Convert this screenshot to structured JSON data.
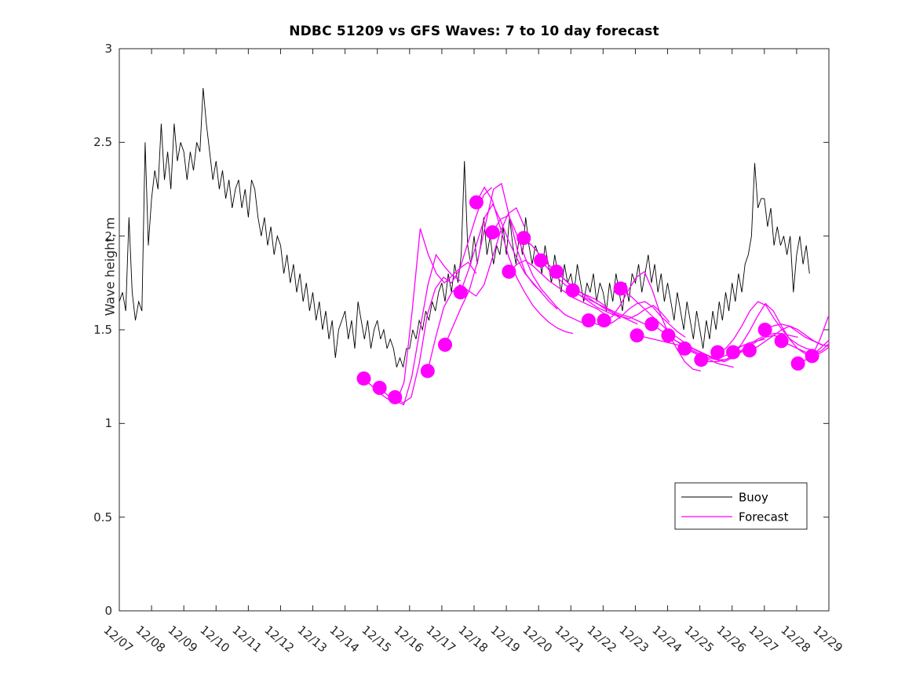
{
  "title": "NDBC 51209 vs GFS Waves: 7 to 10 day forecast",
  "ylabel": "Wave height, m",
  "legend": {
    "items": [
      {
        "label": "Buoy",
        "color": "#000000"
      },
      {
        "label": "Forecast",
        "color": "#ff00ff"
      }
    ]
  },
  "colors": {
    "buoy": "#000000",
    "forecast": "#ff00ff",
    "axis": "#262626",
    "background": "#ffffff"
  },
  "chart_data": {
    "type": "line",
    "title": "NDBC 51209 vs GFS Waves: 7 to 10 day forecast",
    "xlabel": "",
    "ylabel": "Wave height, m",
    "ylim": [
      0,
      3
    ],
    "yticks": [
      0,
      0.5,
      1,
      1.5,
      2,
      2.5,
      3
    ],
    "ytick_labels": [
      "0",
      "0.5",
      "1",
      "1.5",
      "2",
      "2.5",
      "3"
    ],
    "xtick_labels": [
      "12/07",
      "12/08",
      "12/09",
      "12/10",
      "12/11",
      "12/12",
      "12/13",
      "12/14",
      "12/15",
      "12/16",
      "12/17",
      "12/18",
      "12/19",
      "12/20",
      "12/21",
      "12/22",
      "12/23",
      "12/24",
      "12/25",
      "12/26",
      "12/27",
      "12/28",
      "12/29"
    ],
    "x_axis_note": "x values are days after 12/07 00:00; axis spans 0 to 22 (12/07 to 12/29)",
    "grid": false,
    "legend_position": "inside lower right",
    "series": [
      {
        "name": "Buoy",
        "style": "noisy line, black, ~hourly observations",
        "t0": 0.0,
        "dt": 0.1,
        "values": [
          1.65,
          1.7,
          1.6,
          2.1,
          1.7,
          1.55,
          1.65,
          1.6,
          2.5,
          1.95,
          2.2,
          2.35,
          2.25,
          2.6,
          2.3,
          2.45,
          2.25,
          2.6,
          2.4,
          2.5,
          2.45,
          2.3,
          2.45,
          2.35,
          2.5,
          2.45,
          2.79,
          2.6,
          2.45,
          2.3,
          2.4,
          2.25,
          2.35,
          2.2,
          2.3,
          2.15,
          2.25,
          2.3,
          2.15,
          2.25,
          2.1,
          2.3,
          2.25,
          2.1,
          2.0,
          2.1,
          1.95,
          2.05,
          1.9,
          2.0,
          1.95,
          1.8,
          1.9,
          1.75,
          1.85,
          1.7,
          1.8,
          1.65,
          1.75,
          1.6,
          1.7,
          1.55,
          1.65,
          1.5,
          1.6,
          1.45,
          1.55,
          1.35,
          1.5,
          1.55,
          1.6,
          1.45,
          1.55,
          1.4,
          1.65,
          1.55,
          1.45,
          1.55,
          1.4,
          1.5,
          1.55,
          1.45,
          1.5,
          1.4,
          1.45,
          1.4,
          1.3,
          1.35,
          1.3,
          1.4,
          1.4,
          1.5,
          1.45,
          1.55,
          1.5,
          1.6,
          1.55,
          1.65,
          1.6,
          1.7,
          1.75,
          1.65,
          1.8,
          1.7,
          1.85,
          1.75,
          1.9,
          2.4,
          1.95,
          1.85,
          2.0,
          1.85,
          1.95,
          2.1,
          1.9,
          2.0,
          1.85,
          1.95,
          1.9,
          2.05,
          1.9,
          2.1,
          1.95,
          1.85,
          2.0,
          1.9,
          2.1,
          1.95,
          1.85,
          1.95,
          1.9,
          1.8,
          1.95,
          1.85,
          1.75,
          1.9,
          1.8,
          1.7,
          1.85,
          1.75,
          1.8,
          1.7,
          1.85,
          1.75,
          1.65,
          1.75,
          1.7,
          1.8,
          1.65,
          1.75,
          1.7,
          1.6,
          1.75,
          1.65,
          1.8,
          1.7,
          1.6,
          1.75,
          1.65,
          1.8,
          1.75,
          1.85,
          1.7,
          1.8,
          1.9,
          1.75,
          1.85,
          1.7,
          1.8,
          1.65,
          1.75,
          1.65,
          1.55,
          1.7,
          1.6,
          1.5,
          1.65,
          1.55,
          1.45,
          1.6,
          1.5,
          1.4,
          1.55,
          1.45,
          1.6,
          1.5,
          1.65,
          1.55,
          1.7,
          1.6,
          1.75,
          1.65,
          1.8,
          1.7,
          1.85,
          1.9,
          2.0,
          2.39,
          2.15,
          2.2,
          2.2,
          2.05,
          2.15,
          1.95,
          2.05,
          1.95,
          2.0,
          1.9,
          2.0,
          1.7,
          1.9,
          2.0,
          1.85,
          1.95,
          1.8
        ]
      }
    ],
    "forecast_runs_note": "GFS wave forecasts, hours 168-240 (day 7 to day 10) of successive 12-hourly runs; magenta dot marks first (day-7) point of each run; dt between points = 0.25 day",
    "forecast_runs": [
      {
        "start_day": 7.58,
        "dt": 0.25,
        "values": [
          1.24,
          1.2,
          1.16,
          1.13,
          1.11,
          1.22,
          1.6,
          2.04,
          1.9,
          1.8,
          1.75,
          1.79,
          1.76
        ]
      },
      {
        "start_day": 8.07,
        "dt": 0.25,
        "values": [
          1.19,
          1.15,
          1.12,
          1.1,
          1.25,
          1.5,
          1.74,
          1.9,
          1.84,
          1.79,
          1.83,
          1.86,
          1.8
        ]
      },
      {
        "start_day": 8.55,
        "dt": 0.25,
        "values": [
          1.14,
          1.11,
          1.14,
          1.32,
          1.58,
          1.72,
          1.78,
          1.75,
          1.82,
          1.96,
          2.1,
          2.22,
          2.26
        ]
      },
      {
        "start_day": 9.56,
        "dt": 0.25,
        "values": [
          1.28,
          1.46,
          1.62,
          1.7,
          1.74,
          1.71,
          1.68,
          1.74,
          1.88,
          2.02,
          2.12,
          2.15,
          2.05
        ]
      },
      {
        "start_day": 10.1,
        "dt": 0.25,
        "values": [
          1.42,
          1.52,
          1.62,
          1.71,
          1.86,
          2.06,
          2.25,
          2.28,
          2.1,
          1.92,
          1.8,
          1.74,
          1.7
        ]
      },
      {
        "start_day": 10.58,
        "dt": 0.25,
        "values": [
          1.7,
          1.82,
          1.96,
          2.1,
          2.17,
          2.08,
          1.97,
          1.88,
          1.8,
          1.75,
          1.7,
          1.65,
          1.61
        ]
      },
      {
        "start_day": 11.07,
        "dt": 0.25,
        "values": [
          2.18,
          2.26,
          2.19,
          2.04,
          1.89,
          1.78,
          1.7,
          1.63,
          1.58,
          1.54,
          1.51,
          1.49,
          1.48
        ]
      },
      {
        "start_day": 11.57,
        "dt": 0.25,
        "values": [
          2.02,
          2.09,
          2.11,
          2.01,
          1.89,
          1.79,
          1.72,
          1.67,
          1.62,
          1.58,
          1.56,
          1.54,
          1.55
        ]
      },
      {
        "start_day": 12.08,
        "dt": 0.25,
        "values": [
          1.81,
          1.85,
          1.87,
          1.84,
          1.8,
          1.76,
          1.73,
          1.7,
          1.67,
          1.65,
          1.63,
          1.61,
          1.58
        ]
      },
      {
        "start_day": 12.54,
        "dt": 0.25,
        "values": [
          1.99,
          1.95,
          1.9,
          1.85,
          1.81,
          1.77,
          1.73,
          1.7,
          1.68,
          1.66,
          1.63,
          1.59,
          1.56
        ]
      },
      {
        "start_day": 13.07,
        "dt": 0.25,
        "values": [
          1.87,
          1.82,
          1.78,
          1.74,
          1.71,
          1.68,
          1.66,
          1.64,
          1.61,
          1.59,
          1.57,
          1.55,
          1.53
        ]
      },
      {
        "start_day": 13.55,
        "dt": 0.25,
        "values": [
          1.81,
          1.77,
          1.73,
          1.7,
          1.67,
          1.64,
          1.62,
          1.6,
          1.58,
          1.57,
          1.55,
          1.53,
          1.51
        ]
      },
      {
        "start_day": 14.06,
        "dt": 0.25,
        "values": [
          1.71,
          1.68,
          1.65,
          1.62,
          1.6,
          1.58,
          1.57,
          1.56,
          1.58,
          1.61,
          1.63,
          1.59,
          1.54
        ]
      },
      {
        "start_day": 14.55,
        "dt": 0.25,
        "values": [
          1.55,
          1.53,
          1.52,
          1.54,
          1.57,
          1.61,
          1.64,
          1.65,
          1.62,
          1.57,
          1.53,
          1.49,
          1.46
        ]
      },
      {
        "start_day": 15.03,
        "dt": 0.25,
        "values": [
          1.55,
          1.57,
          1.63,
          1.71,
          1.78,
          1.81,
          1.71,
          1.58,
          1.48,
          1.4,
          1.33,
          1.29,
          1.28
        ]
      },
      {
        "start_day": 15.54,
        "dt": 0.25,
        "values": [
          1.72,
          1.69,
          1.65,
          1.61,
          1.57,
          1.53,
          1.49,
          1.46,
          1.43,
          1.4,
          1.38,
          1.36,
          1.35
        ]
      },
      {
        "start_day": 16.05,
        "dt": 0.25,
        "values": [
          1.47,
          1.46,
          1.45,
          1.44,
          1.43,
          1.42,
          1.4,
          1.38,
          1.36,
          1.34,
          1.32,
          1.31,
          1.3
        ]
      },
      {
        "start_day": 16.51,
        "dt": 0.25,
        "values": [
          1.53,
          1.5,
          1.47,
          1.44,
          1.42,
          1.4,
          1.38,
          1.36,
          1.34,
          1.33,
          1.35,
          1.38,
          1.4
        ]
      },
      {
        "start_day": 17.02,
        "dt": 0.25,
        "values": [
          1.47,
          1.44,
          1.41,
          1.39,
          1.37,
          1.36,
          1.35,
          1.36,
          1.38,
          1.41,
          1.43,
          1.44,
          1.45
        ]
      },
      {
        "start_day": 17.53,
        "dt": 0.25,
        "values": [
          1.4,
          1.38,
          1.36,
          1.35,
          1.34,
          1.34,
          1.36,
          1.38,
          1.41,
          1.44,
          1.46,
          1.47,
          1.46
        ]
      },
      {
        "start_day": 18.04,
        "dt": 0.25,
        "values": [
          1.34,
          1.33,
          1.33,
          1.34,
          1.36,
          1.39,
          1.42,
          1.45,
          1.47,
          1.48,
          1.48,
          1.47,
          1.46
        ]
      },
      {
        "start_day": 18.55,
        "dt": 0.25,
        "values": [
          1.38,
          1.4,
          1.45,
          1.52,
          1.6,
          1.65,
          1.63,
          1.56,
          1.5,
          1.45,
          1.42,
          1.4,
          1.39
        ]
      },
      {
        "start_day": 19.03,
        "dt": 0.25,
        "values": [
          1.38,
          1.42,
          1.49,
          1.57,
          1.64,
          1.6,
          1.52,
          1.45,
          1.4,
          1.37,
          1.36,
          1.38,
          1.41
        ]
      },
      {
        "start_day": 19.54,
        "dt": 0.25,
        "values": [
          1.39,
          1.41,
          1.44,
          1.47,
          1.5,
          1.52,
          1.5,
          1.47,
          1.44,
          1.42,
          1.41,
          1.43,
          1.45
        ]
      },
      {
        "start_day": 20.02,
        "dt": 0.25,
        "values": [
          1.5,
          1.52,
          1.53,
          1.52,
          1.49,
          1.46,
          1.44,
          1.42,
          1.41,
          1.42,
          1.45,
          1.5,
          1.55
        ]
      },
      {
        "start_day": 20.53,
        "dt": 0.25,
        "values": [
          1.44,
          1.42,
          1.4,
          1.38,
          1.37,
          1.39,
          1.43,
          1.48,
          1.52,
          1.55,
          1.57,
          1.58,
          1.58
        ]
      },
      {
        "start_day": 21.04,
        "dt": 0.25,
        "values": [
          1.32,
          1.34,
          1.37,
          1.41,
          1.45,
          1.48,
          1.51,
          1.53,
          1.55,
          1.56,
          1.57,
          1.57,
          1.57
        ]
      },
      {
        "start_day": 21.48,
        "dt": 0.25,
        "values": [
          1.36,
          1.45,
          1.57,
          1.62,
          1.65,
          1.66,
          1.66,
          1.65,
          1.64,
          1.63,
          1.62,
          1.61,
          1.6
        ]
      }
    ]
  }
}
